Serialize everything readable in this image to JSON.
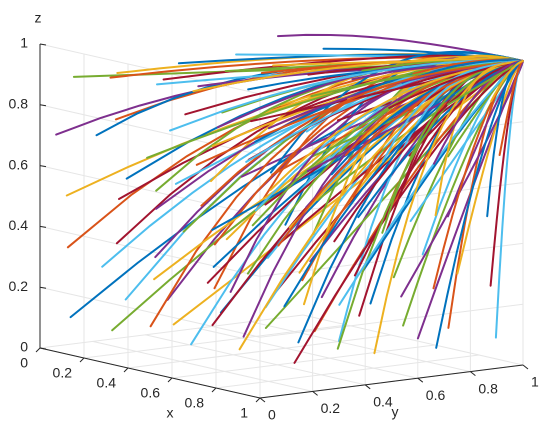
{
  "chart_data": {
    "type": "line",
    "subtype": "3d-trajectories",
    "title": "",
    "xlabel": "x",
    "ylabel": "y",
    "zlabel": "z",
    "xlim": [
      0,
      1
    ],
    "ylim": [
      0,
      1
    ],
    "zlim": [
      0,
      1
    ],
    "x_ticks": [
      "0",
      "0.2",
      "0.4",
      "0.6",
      "0.8",
      "1"
    ],
    "y_ticks": [
      "0",
      "0.2",
      "0.4",
      "0.6",
      "0.8",
      "1"
    ],
    "z_ticks": [
      "0",
      "0.2",
      "0.4",
      "0.6",
      "0.8",
      "1"
    ],
    "grid": true,
    "convergence_point": [
      1,
      1,
      1
    ],
    "initial_x": [
      0,
      0.2,
      0.4,
      0.6,
      0.8,
      1.0
    ],
    "initial_y": [
      0.1,
      0.3,
      0.5,
      0.7,
      0.9
    ],
    "initial_z": [
      0.1,
      0.3,
      0.5,
      0.7,
      0.9
    ],
    "series_colors": [
      "#0072BD",
      "#D95319",
      "#EDB120",
      "#7E2F8E",
      "#77AC30",
      "#4DBEEE",
      "#A2142F"
    ]
  }
}
